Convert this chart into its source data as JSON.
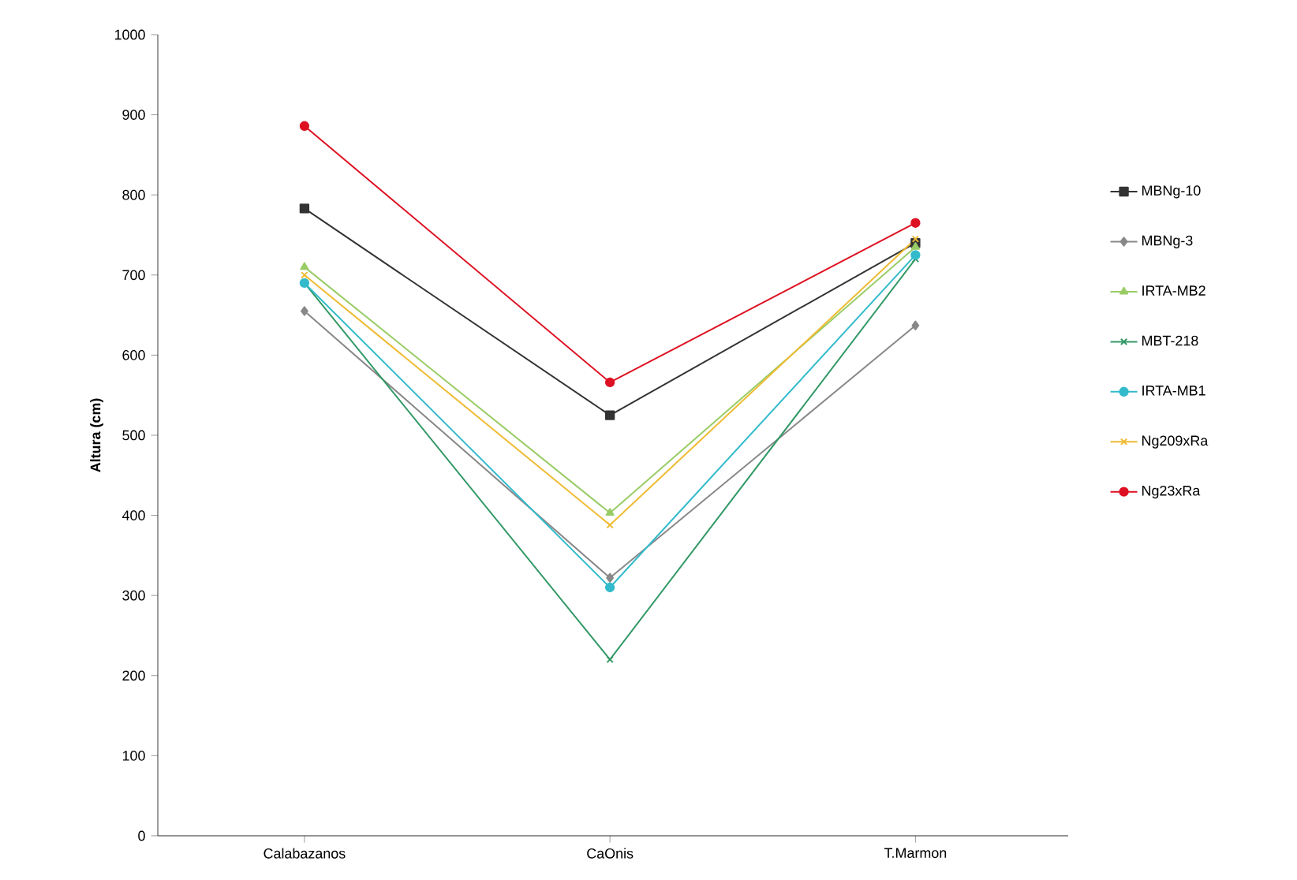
{
  "chart_data": {
    "type": "line",
    "ylabel": "Altura (cm)",
    "categories": [
      "Calabazanos",
      "CaOnis",
      "T.Marmon"
    ],
    "ylim": [
      0,
      1000
    ],
    "yticks": [
      0,
      100,
      200,
      300,
      400,
      500,
      600,
      700,
      800,
      900,
      1000
    ],
    "legend": "right",
    "grid": false,
    "line_style": "solid",
    "series": [
      {
        "name": "MBNg-10",
        "color": "#333333",
        "marker": "square",
        "values": [
          783,
          525,
          740
        ]
      },
      {
        "name": "MBNg-3",
        "color": "#888888",
        "marker": "diamond",
        "values": [
          655,
          322,
          637
        ]
      },
      {
        "name": "IRTA-MB2",
        "color": "#99cc66",
        "marker": "triangle",
        "values": [
          710,
          403,
          735
        ]
      },
      {
        "name": "MBT-218",
        "color": "#339966",
        "marker": "cross",
        "values": [
          690,
          220,
          720
        ]
      },
      {
        "name": "IRTA-MB1",
        "color": "#33bbcc",
        "marker": "circle",
        "values": [
          690,
          310,
          725
        ]
      },
      {
        "name": "Ng209xRa",
        "color": "#eebb33",
        "marker": "cross",
        "values": [
          700,
          388,
          745
        ]
      },
      {
        "name": "Ng23xRa",
        "color": "#dd1122",
        "marker": "circle",
        "values": [
          886,
          566,
          765
        ]
      }
    ]
  }
}
